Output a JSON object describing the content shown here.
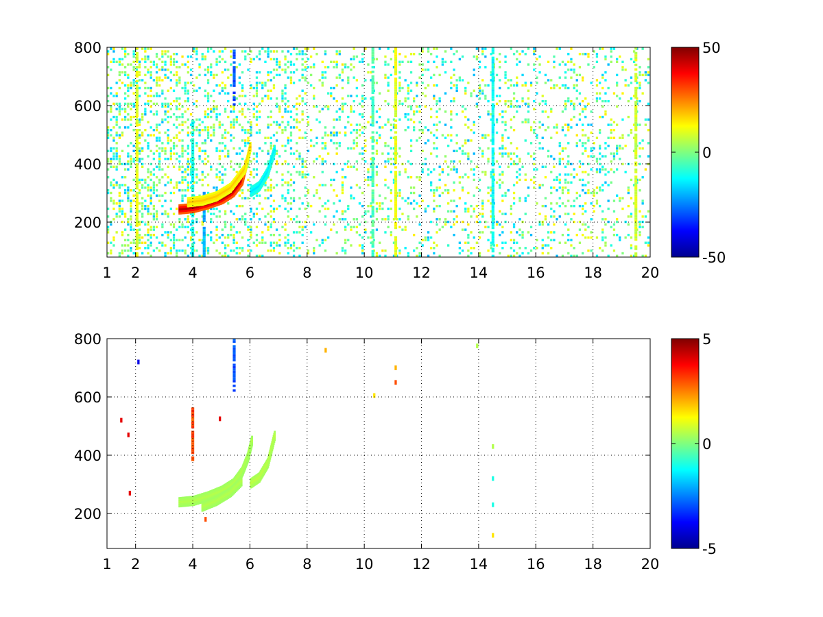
{
  "figure": {
    "background": "#ffffff"
  },
  "colormap": "jet",
  "chart_data": [
    {
      "type": "heatmap",
      "title": "",
      "xlabel": "",
      "ylabel": "",
      "xlim": [
        1,
        20
      ],
      "ylim": [
        80,
        800
      ],
      "x_ticks": [
        1,
        2,
        4,
        6,
        8,
        10,
        12,
        14,
        16,
        18,
        20
      ],
      "x_tick_labels": [
        "1",
        "2",
        "4",
        "6",
        "8",
        "10",
        "12",
        "14",
        "16",
        "18",
        "20"
      ],
      "y_ticks": [
        200,
        400,
        600,
        800
      ],
      "y_tick_labels": [
        "200",
        "400",
        "600",
        "800"
      ],
      "grid": true,
      "colorbar": {
        "range": [
          -50,
          50
        ],
        "ticks": [
          50,
          0,
          -50
        ],
        "tick_labels": [
          "50",
          "0",
          "-50"
        ]
      },
      "features": {
        "ridges": [
          {
            "x": [
              3.5,
              4.0,
              4.5,
              5.0,
              5.4,
              5.7,
              5.85
            ],
            "y": [
              240,
              245,
              258,
              275,
              300,
              340,
              400
            ],
            "value": 45
          },
          {
            "x": [
              3.8,
              4.3,
              4.8,
              5.3,
              5.8,
              6.0
            ],
            "y": [
              265,
              270,
              285,
              315,
              380,
              460
            ],
            "value": 18
          },
          {
            "x": [
              6.0,
              6.3,
              6.6,
              6.85
            ],
            "y": [
              300,
              320,
              370,
              450
            ],
            "value": -15
          }
        ],
        "dense_columns": [
          {
            "x": 5.45,
            "y_range": [
              600,
              800
            ],
            "value": -30
          },
          {
            "x": 4.0,
            "y_range": [
              80,
              560
            ],
            "value": -10
          },
          {
            "x": 4.4,
            "y_range": [
              80,
              300
            ],
            "value": -20
          },
          {
            "x": 2.05,
            "y_range": [
              80,
              800
            ],
            "value": 10
          },
          {
            "x": 10.3,
            "y_range": [
              80,
              800
            ],
            "value": -5
          },
          {
            "x": 11.1,
            "y_range": [
              80,
              800
            ],
            "value": 10
          },
          {
            "x": 14.5,
            "y_range": [
              80,
              800
            ],
            "value": -12
          },
          {
            "x": 19.5,
            "y_range": [
              80,
              800
            ],
            "value": 8
          }
        ],
        "sparse_fill": {
          "x_range": [
            1,
            20
          ],
          "y_range": [
            80,
            800
          ],
          "value_range": [
            -20,
            15
          ]
        }
      }
    },
    {
      "type": "heatmap",
      "title": "",
      "xlabel": "",
      "ylabel": "",
      "xlim": [
        1,
        20
      ],
      "ylim": [
        80,
        800
      ],
      "x_ticks": [
        1,
        2,
        4,
        6,
        8,
        10,
        12,
        14,
        16,
        18,
        20
      ],
      "x_tick_labels": [
        "1",
        "2",
        "4",
        "6",
        "8",
        "10",
        "12",
        "14",
        "16",
        "18",
        "20"
      ],
      "y_ticks": [
        200,
        400,
        600,
        800
      ],
      "y_tick_labels": [
        "200",
        "400",
        "600",
        "800"
      ],
      "grid": true,
      "colorbar": {
        "range": [
          -5,
          5
        ],
        "ticks": [
          5,
          0,
          -5
        ],
        "tick_labels": [
          "5",
          "0",
          "-5"
        ]
      },
      "features": {
        "ridges": [
          {
            "x": [
              3.5,
              4.0,
              4.5,
              5.0,
              5.4,
              5.7,
              5.9,
              6.05
            ],
            "y": [
              235,
              240,
              255,
              275,
              300,
              340,
              390,
              450
            ],
            "value": 0.5
          },
          {
            "x": [
              4.3,
              4.8,
              5.3,
              5.7
            ],
            "y": [
              220,
              240,
              270,
              310
            ],
            "value": 0.5
          },
          {
            "x": [
              6.0,
              6.3,
              6.6,
              6.85
            ],
            "y": [
              300,
              320,
              370,
              470
            ],
            "value": 0.6
          }
        ],
        "dense_columns": [
          {
            "x": 5.45,
            "y_range": [
              610,
              800
            ],
            "value": -3
          },
          {
            "x": 4.0,
            "y_range": [
              380,
              560
            ],
            "value": 3
          }
        ],
        "spots": [
          {
            "x": 8.65,
            "y": 760,
            "value": 2
          },
          {
            "x": 10.35,
            "y": 605,
            "value": 1.5
          },
          {
            "x": 11.1,
            "y": 700,
            "value": 2
          },
          {
            "x": 11.1,
            "y": 650,
            "value": 3
          },
          {
            "x": 13.95,
            "y": 775,
            "value": 0.5
          },
          {
            "x": 14.5,
            "y": 320,
            "value": -1
          },
          {
            "x": 14.5,
            "y": 230,
            "value": -1
          },
          {
            "x": 14.5,
            "y": 430,
            "value": 0.5
          },
          {
            "x": 14.5,
            "y": 125,
            "value": 1.5
          },
          {
            "x": 4.45,
            "y": 180,
            "value": 3
          },
          {
            "x": 1.8,
            "y": 270,
            "value": 4
          },
          {
            "x": 1.5,
            "y": 520,
            "value": 4
          },
          {
            "x": 4.95,
            "y": 525,
            "value": 4
          },
          {
            "x": 2.1,
            "y": 720,
            "value": -4
          },
          {
            "x": 1.75,
            "y": 470,
            "value": 4
          }
        ]
      }
    }
  ]
}
